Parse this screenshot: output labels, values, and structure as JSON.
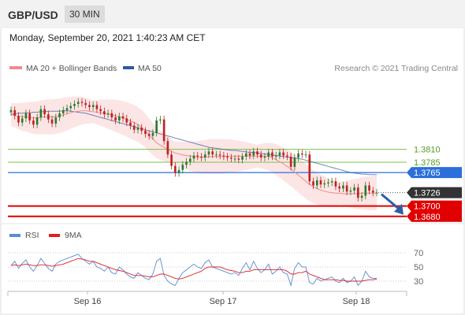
{
  "header": {
    "pair": "GBP/USD",
    "timeframe": "30 MIN"
  },
  "datetime": "Monday, September 20, 2021 1:40:23 AM CET",
  "legend": {
    "ma20": {
      "label": "MA 20 + Bollinger Bands",
      "color": "#f28b8b"
    },
    "ma50": {
      "label": "MA 50",
      "color": "#2e5a9c"
    }
  },
  "copyright": "Research © 2021 Trading Central",
  "rsi_legend": {
    "rsi": {
      "label": "RSI",
      "color": "#5b8ad6"
    },
    "ma9": {
      "label": "9MA",
      "color": "#e02020"
    }
  },
  "colors": {
    "up": "#2a7a2a",
    "down": "#c02020",
    "support": "#e00000",
    "resistance": "#7fbf4f",
    "pivot": "#2a6fdb",
    "current": "#333333"
  },
  "chart_data": {
    "type": "candlestick",
    "x_ticks": [
      "Sep 16",
      "Sep 17",
      "Sep 18"
    ],
    "levels": [
      {
        "label": "1.3810",
        "value": 1.381,
        "kind": "resistance"
      },
      {
        "label": "1.3785",
        "value": 1.3785,
        "kind": "resistance"
      },
      {
        "label": "1.3765",
        "value": 1.3765,
        "kind": "pivot"
      },
      {
        "label": "1.3726",
        "value": 1.3726,
        "kind": "current"
      },
      {
        "label": "1.3700",
        "value": 1.37,
        "kind": "support"
      },
      {
        "label": "1.3680",
        "value": 1.368,
        "kind": "support"
      }
    ],
    "close": [
      1.3886,
      1.3875,
      1.3862,
      1.387,
      1.388,
      1.3866,
      1.3858,
      1.3872,
      1.3888,
      1.3878,
      1.3868,
      1.386,
      1.3872,
      1.388,
      1.3886,
      1.389,
      1.3894,
      1.3898,
      1.3902,
      1.39,
      1.3896,
      1.3892,
      1.3896,
      1.3888,
      1.3884,
      1.3878,
      1.388,
      1.3872,
      1.3866,
      1.3874,
      1.387,
      1.3862,
      1.3856,
      1.3848,
      1.3852,
      1.3846,
      1.384,
      1.3836,
      1.3842,
      1.3866,
      1.3868,
      1.3826,
      1.38,
      1.3778,
      1.3764,
      1.377,
      1.378,
      1.3786,
      1.3792,
      1.3798,
      1.3796,
      1.3794,
      1.38,
      1.3806,
      1.38,
      1.38,
      1.3798,
      1.3796,
      1.3794,
      1.3792,
      1.3792,
      1.379,
      1.3796,
      1.3802,
      1.3798,
      1.3806,
      1.38,
      1.3794,
      1.3796,
      1.3804,
      1.3796,
      1.3798,
      1.3804,
      1.3798,
      1.3796,
      1.3776,
      1.3794,
      1.3802,
      1.38,
      1.38,
      1.3748,
      1.374,
      1.375,
      1.3742,
      1.3744,
      1.3746,
      1.3748,
      1.3738,
      1.3734,
      1.374,
      1.3728,
      1.373,
      1.3736,
      1.3716,
      1.372,
      1.374,
      1.373,
      1.3726,
      1.3726
    ],
    "ma20": [
      1.3878,
      1.3876,
      1.3874,
      1.3873,
      1.3873,
      1.3872,
      1.3871,
      1.3871,
      1.3872,
      1.3873,
      1.3873,
      1.3873,
      1.3874,
      1.3875,
      1.3877,
      1.3879,
      1.3881,
      1.3883,
      1.3884,
      1.3885,
      1.3885,
      1.3884,
      1.3883,
      1.3882,
      1.3881,
      1.388,
      1.3878,
      1.3877,
      1.3875,
      1.3873,
      1.3871,
      1.3868,
      1.3865,
      1.3862,
      1.3858,
      1.3853,
      1.3846,
      1.3838,
      1.383,
      1.3823,
      1.3818,
      1.3814,
      1.381,
      1.3806,
      1.3803,
      1.3801,
      1.3799,
      1.3798,
      1.3797,
      1.3796,
      1.3795,
      1.3795,
      1.3795,
      1.3796,
      1.3796,
      1.3796,
      1.3796,
      1.3796,
      1.3797,
      1.3797,
      1.3797,
      1.3797,
      1.3797,
      1.3797,
      1.3797,
      1.3797,
      1.3797,
      1.3797,
      1.3797,
      1.3796,
      1.3794,
      1.379,
      1.3786,
      1.3782,
      1.3777,
      1.3772,
      1.3766,
      1.376,
      1.3754,
      1.3748,
      1.3742,
      1.3738,
      1.3734,
      1.3731,
      1.3729,
      1.3727,
      1.3726,
      1.3725,
      1.3725,
      1.3724,
      1.3724,
      1.3724,
      1.3724,
      1.3724,
      1.3725,
      1.3725,
      1.3725,
      1.3725,
      1.3725
    ],
    "ma50": [
      1.3878,
      1.3879,
      1.388,
      1.388,
      1.3881,
      1.3881,
      1.3882,
      1.3882,
      1.3883,
      1.3883,
      1.3884,
      1.3884,
      1.3884,
      1.3884,
      1.3885,
      1.3885,
      1.3884,
      1.3883,
      1.3882,
      1.3881,
      1.388,
      1.3878,
      1.3876,
      1.3874,
      1.3872,
      1.387,
      1.3868,
      1.3866,
      1.3864,
      1.3862,
      1.386,
      1.3858,
      1.3856,
      1.3854,
      1.3852,
      1.385,
      1.3848,
      1.3846,
      1.3844,
      1.3842,
      1.384,
      1.3838,
      1.3836,
      1.3834,
      1.3832,
      1.383,
      1.3828,
      1.3826,
      1.3824,
      1.3822,
      1.382,
      1.3818,
      1.3816,
      1.3814,
      1.3813,
      1.3812,
      1.3811,
      1.381,
      1.3809,
      1.3808,
      1.3808,
      1.3807,
      1.3806,
      1.3805,
      1.3804,
      1.3804,
      1.3803,
      1.3802,
      1.3801,
      1.38,
      1.3799,
      1.3798,
      1.3797,
      1.3796,
      1.3795,
      1.3794,
      1.3793,
      1.3792,
      1.3791,
      1.3789,
      1.3787,
      1.3785,
      1.3783,
      1.3781,
      1.3779,
      1.3777,
      1.3775,
      1.3773,
      1.3771,
      1.3769,
      1.3767,
      1.3765,
      1.3764,
      1.3763,
      1.3762,
      1.3762,
      1.3761,
      1.3761,
      1.3761
    ],
    "ylim": [
      1.3672,
      1.395
    ],
    "rsi": {
      "ticks": [
        70,
        50,
        30
      ],
      "ylim": [
        20,
        80
      ],
      "rsi": [
        52,
        58,
        48,
        55,
        60,
        50,
        44,
        52,
        62,
        55,
        48,
        44,
        54,
        58,
        60,
        62,
        64,
        66,
        68,
        62,
        58,
        54,
        58,
        50,
        48,
        44,
        50,
        42,
        40,
        50,
        46,
        40,
        36,
        34,
        42,
        38,
        34,
        32,
        40,
        58,
        62,
        38,
        30,
        26,
        24,
        34,
        42,
        46,
        50,
        54,
        50,
        48,
        56,
        60,
        50,
        48,
        46,
        44,
        42,
        40,
        42,
        38,
        48,
        56,
        46,
        58,
        48,
        42,
        46,
        54,
        40,
        44,
        50,
        42,
        40,
        24,
        48,
        56,
        50,
        50,
        28,
        26,
        34,
        30,
        32,
        34,
        36,
        30,
        28,
        34,
        28,
        30,
        36,
        24,
        30,
        44,
        36,
        34,
        34
      ],
      "ma9": [
        52,
        53,
        52,
        53,
        54,
        53,
        52,
        52,
        53,
        53,
        52,
        51,
        52,
        53,
        54,
        56,
        58,
        60,
        62,
        61,
        60,
        58,
        58,
        56,
        54,
        52,
        50,
        48,
        46,
        45,
        44,
        42,
        40,
        38,
        38,
        38,
        37,
        36,
        36,
        38,
        40,
        40,
        38,
        36,
        34,
        33,
        34,
        36,
        38,
        40,
        42,
        44,
        48,
        50,
        50,
        50,
        50,
        48,
        46,
        45,
        44,
        42,
        42,
        44,
        44,
        46,
        46,
        46,
        46,
        46,
        46,
        46,
        46,
        46,
        44,
        40,
        40,
        42,
        42,
        44,
        40,
        38,
        36,
        34,
        32,
        32,
        32,
        32,
        31,
        31,
        30,
        30,
        30,
        30,
        30,
        31,
        32,
        32,
        33
      ]
    }
  }
}
